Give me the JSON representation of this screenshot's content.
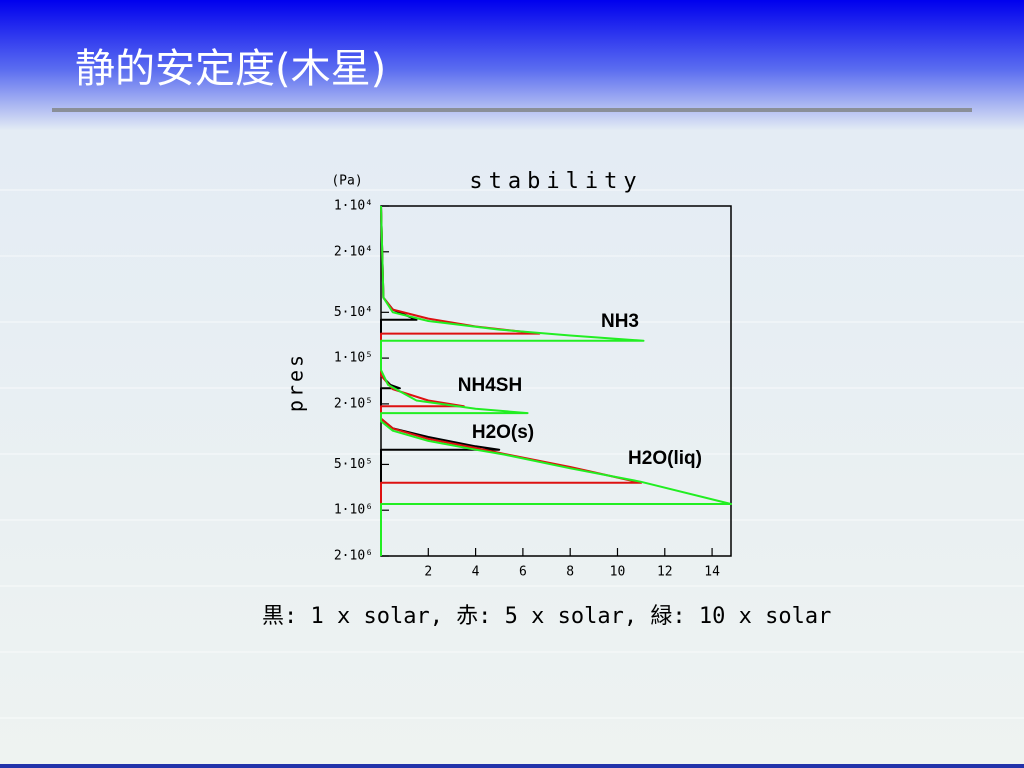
{
  "slide": {
    "title": "静的安定度(木星)",
    "caption": "黒: 1 x solar, 赤: 5 x solar, 緑: 10 x solar"
  },
  "chart_data": {
    "type": "line",
    "title": "stability",
    "y_unit": "(Pa)",
    "ylabel": "pres",
    "xlim": [
      0,
      14.8
    ],
    "xticks": [
      2,
      4,
      6,
      8,
      10,
      12,
      14
    ],
    "ylim": [
      10000,
      2000000
    ],
    "ylog": true,
    "y_inverted": true,
    "yticks": [
      {
        "value": 10000,
        "label": "1·10⁴"
      },
      {
        "value": 20000,
        "label": "2·10⁴"
      },
      {
        "value": 50000,
        "label": "5·10⁴"
      },
      {
        "value": 100000,
        "label": "1·10⁵"
      },
      {
        "value": 200000,
        "label": "2·10⁵"
      },
      {
        "value": 500000,
        "label": "5·10⁵"
      },
      {
        "value": 1000000,
        "label": "1·10⁶"
      },
      {
        "value": 2000000,
        "label": "2·10⁶"
      }
    ],
    "series": [
      {
        "color": "#000000",
        "x": [
          0,
          0.1,
          0.5,
          1.5,
          0,
          0,
          0.4,
          0.8,
          0,
          0,
          0.5,
          2,
          4,
          5,
          0,
          0
        ],
        "y": [
          10000,
          40000,
          48000,
          56000,
          56000,
          130000,
          150000,
          158000,
          158000,
          250000,
          290000,
          330000,
          380000,
          400000,
          400000,
          2000000
        ]
      },
      {
        "color": "#dd1111",
        "x": [
          0,
          0.1,
          0.5,
          2,
          4,
          6.7,
          0,
          0,
          0.5,
          2,
          3.5,
          0,
          0,
          0.5,
          2,
          4,
          5,
          8,
          11,
          0,
          0
        ],
        "y": [
          10000,
          40000,
          48000,
          55000,
          62000,
          69000,
          69000,
          130000,
          160000,
          190000,
          207000,
          207000,
          250000,
          290000,
          340000,
          390000,
          420000,
          520000,
          660000,
          660000,
          2000000
        ]
      },
      {
        "color": "#22ee22",
        "x": [
          0,
          0.1,
          0.5,
          2,
          5,
          8,
          11.1,
          0,
          0,
          0.3,
          1.5,
          4,
          6.2,
          0,
          0,
          0.5,
          2,
          4,
          5.2,
          8,
          11,
          14.8,
          0,
          0
        ],
        "y": [
          10000,
          40000,
          50000,
          57000,
          65000,
          71000,
          77000,
          77000,
          120000,
          150000,
          190000,
          215000,
          230000,
          230000,
          260000,
          300000,
          350000,
          400000,
          430000,
          530000,
          650000,
          910000,
          910000,
          2000000
        ]
      }
    ],
    "annotations": [
      "NH3",
      "NH4SH",
      "H2O(s)",
      "H2O(liq)"
    ]
  }
}
